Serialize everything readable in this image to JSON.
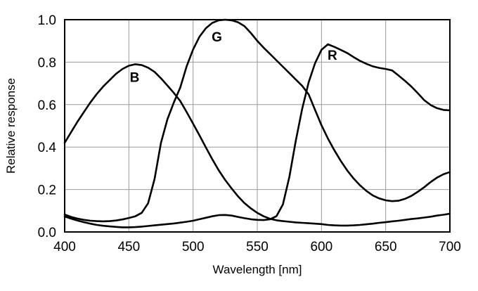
{
  "figure": {
    "background": "#ffffff",
    "frame_color": "#000000",
    "grid_color": "#9a9a9a",
    "curve_color": "#000000",
    "text_color": "#000000"
  },
  "chart_data": {
    "type": "line",
    "title": "",
    "xlabel": "Wavelength [nm]",
    "ylabel": "Relative response",
    "xlim": [
      400,
      700
    ],
    "ylim": [
      0.0,
      1.0
    ],
    "grid": true,
    "legend_position": "inline-curve-labels",
    "x_ticks": [
      400,
      450,
      500,
      550,
      600,
      650,
      700
    ],
    "x_tick_labels": [
      "400",
      "450",
      "500",
      "550",
      "600",
      "650",
      "700"
    ],
    "y_ticks": [
      0.0,
      0.2,
      0.4,
      0.6,
      0.8,
      1.0
    ],
    "y_tick_labels": [
      "0.0",
      "0.2",
      "0.4",
      "0.6",
      "0.8",
      "1.0"
    ],
    "series": [
      {
        "name": "B",
        "label": "B",
        "label_at": [
          454.5,
          0.73
        ],
        "peak": {
          "wavelength": 455,
          "value": 0.79
        },
        "points": [
          [
            400,
            0.42
          ],
          [
            405,
            0.47
          ],
          [
            410,
            0.52
          ],
          [
            415,
            0.565
          ],
          [
            420,
            0.61
          ],
          [
            425,
            0.65
          ],
          [
            430,
            0.685
          ],
          [
            435,
            0.715
          ],
          [
            440,
            0.745
          ],
          [
            445,
            0.768
          ],
          [
            450,
            0.783
          ],
          [
            455,
            0.79
          ],
          [
            460,
            0.786
          ],
          [
            465,
            0.774
          ],
          [
            470,
            0.754
          ],
          [
            475,
            0.724
          ],
          [
            480,
            0.69
          ],
          [
            485,
            0.655
          ],
          [
            490,
            0.617
          ],
          [
            495,
            0.565
          ],
          [
            500,
            0.51
          ],
          [
            505,
            0.455
          ],
          [
            510,
            0.398
          ],
          [
            515,
            0.342
          ],
          [
            520,
            0.29
          ],
          [
            525,
            0.245
          ],
          [
            530,
            0.205
          ],
          [
            535,
            0.168
          ],
          [
            540,
            0.136
          ],
          [
            545,
            0.111
          ],
          [
            550,
            0.09
          ],
          [
            555,
            0.074
          ],
          [
            560,
            0.062
          ],
          [
            565,
            0.055
          ],
          [
            570,
            0.051
          ],
          [
            575,
            0.048
          ],
          [
            580,
            0.045
          ],
          [
            585,
            0.043
          ],
          [
            590,
            0.041
          ],
          [
            595,
            0.039
          ],
          [
            600,
            0.037
          ],
          [
            605,
            0.033
          ],
          [
            610,
            0.031
          ],
          [
            615,
            0.03
          ],
          [
            620,
            0.03
          ],
          [
            625,
            0.031
          ],
          [
            630,
            0.033
          ],
          [
            635,
            0.036
          ],
          [
            640,
            0.039
          ],
          [
            645,
            0.043
          ],
          [
            650,
            0.046
          ],
          [
            655,
            0.05
          ],
          [
            660,
            0.053
          ],
          [
            665,
            0.057
          ],
          [
            670,
            0.061
          ],
          [
            675,
            0.064
          ],
          [
            680,
            0.068
          ],
          [
            685,
            0.072
          ],
          [
            690,
            0.077
          ],
          [
            695,
            0.081
          ],
          [
            700,
            0.086
          ]
        ]
      },
      {
        "name": "G",
        "label": "G",
        "label_at": [
          518.5,
          0.92
        ],
        "peak": {
          "wavelength": 525,
          "value": 1.0
        },
        "points": [
          [
            400,
            0.082
          ],
          [
            405,
            0.071
          ],
          [
            410,
            0.063
          ],
          [
            415,
            0.057
          ],
          [
            420,
            0.053
          ],
          [
            425,
            0.051
          ],
          [
            430,
            0.05
          ],
          [
            435,
            0.051
          ],
          [
            440,
            0.054
          ],
          [
            445,
            0.059
          ],
          [
            450,
            0.066
          ],
          [
            455,
            0.074
          ],
          [
            460,
            0.09
          ],
          [
            465,
            0.135
          ],
          [
            470,
            0.25
          ],
          [
            475,
            0.42
          ],
          [
            480,
            0.53
          ],
          [
            485,
            0.61
          ],
          [
            490,
            0.68
          ],
          [
            495,
            0.78
          ],
          [
            500,
            0.86
          ],
          [
            505,
            0.92
          ],
          [
            510,
            0.96
          ],
          [
            515,
            0.985
          ],
          [
            520,
            0.997
          ],
          [
            525,
            1.0
          ],
          [
            530,
            0.997
          ],
          [
            535,
            0.988
          ],
          [
            540,
            0.97
          ],
          [
            545,
            0.937
          ],
          [
            550,
            0.9
          ],
          [
            555,
            0.868
          ],
          [
            560,
            0.838
          ],
          [
            565,
            0.808
          ],
          [
            570,
            0.778
          ],
          [
            575,
            0.748
          ],
          [
            580,
            0.718
          ],
          [
            585,
            0.688
          ],
          [
            590,
            0.648
          ],
          [
            595,
            0.575
          ],
          [
            600,
            0.503
          ],
          [
            605,
            0.44
          ],
          [
            610,
            0.385
          ],
          [
            615,
            0.335
          ],
          [
            620,
            0.29
          ],
          [
            625,
            0.252
          ],
          [
            630,
            0.22
          ],
          [
            635,
            0.193
          ],
          [
            640,
            0.172
          ],
          [
            645,
            0.158
          ],
          [
            650,
            0.149
          ],
          [
            655,
            0.145
          ],
          [
            660,
            0.147
          ],
          [
            665,
            0.156
          ],
          [
            670,
            0.17
          ],
          [
            675,
            0.189
          ],
          [
            680,
            0.211
          ],
          [
            685,
            0.235
          ],
          [
            690,
            0.256
          ],
          [
            695,
            0.272
          ],
          [
            700,
            0.282
          ]
        ]
      },
      {
        "name": "R",
        "label": "R",
        "label_at": [
          608.5,
          0.835
        ],
        "peak": {
          "wavelength": 605,
          "value": 0.885
        },
        "points": [
          [
            400,
            0.073
          ],
          [
            405,
            0.063
          ],
          [
            410,
            0.054
          ],
          [
            415,
            0.046
          ],
          [
            420,
            0.039
          ],
          [
            425,
            0.033
          ],
          [
            430,
            0.029
          ],
          [
            435,
            0.026
          ],
          [
            440,
            0.024
          ],
          [
            445,
            0.022
          ],
          [
            450,
            0.022
          ],
          [
            455,
            0.023
          ],
          [
            460,
            0.025
          ],
          [
            465,
            0.028
          ],
          [
            470,
            0.031
          ],
          [
            475,
            0.034
          ],
          [
            480,
            0.037
          ],
          [
            485,
            0.04
          ],
          [
            490,
            0.044
          ],
          [
            495,
            0.048
          ],
          [
            500,
            0.053
          ],
          [
            505,
            0.06
          ],
          [
            510,
            0.067
          ],
          [
            515,
            0.074
          ],
          [
            520,
            0.079
          ],
          [
            525,
            0.08
          ],
          [
            530,
            0.077
          ],
          [
            535,
            0.071
          ],
          [
            540,
            0.065
          ],
          [
            545,
            0.06
          ],
          [
            550,
            0.057
          ],
          [
            555,
            0.056
          ],
          [
            560,
            0.06
          ],
          [
            565,
            0.075
          ],
          [
            570,
            0.13
          ],
          [
            575,
            0.26
          ],
          [
            580,
            0.43
          ],
          [
            585,
            0.58
          ],
          [
            590,
            0.705
          ],
          [
            595,
            0.795
          ],
          [
            600,
            0.858
          ],
          [
            605,
            0.884
          ],
          [
            610,
            0.872
          ],
          [
            615,
            0.858
          ],
          [
            620,
            0.843
          ],
          [
            625,
            0.824
          ],
          [
            630,
            0.806
          ],
          [
            635,
            0.792
          ],
          [
            640,
            0.78
          ],
          [
            645,
            0.773
          ],
          [
            650,
            0.768
          ],
          [
            655,
            0.761
          ],
          [
            660,
            0.737
          ],
          [
            665,
            0.712
          ],
          [
            670,
            0.685
          ],
          [
            675,
            0.654
          ],
          [
            680,
            0.621
          ],
          [
            685,
            0.598
          ],
          [
            690,
            0.583
          ],
          [
            695,
            0.575
          ],
          [
            700,
            0.573
          ]
        ]
      }
    ]
  }
}
